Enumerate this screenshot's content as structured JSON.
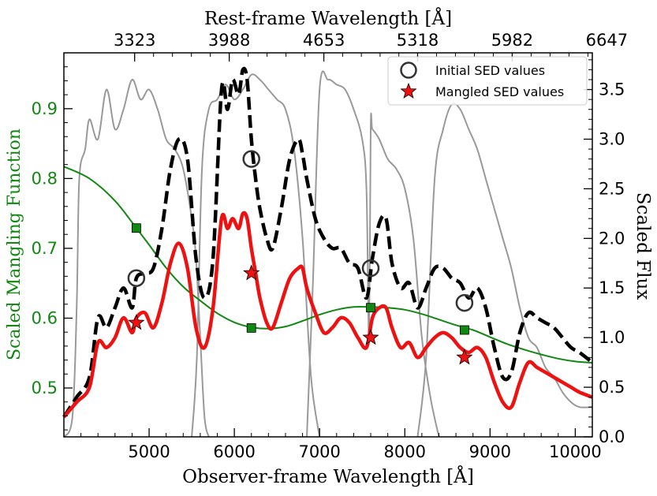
{
  "chart_data": {
    "type": "line",
    "xlabel": "Observer-frame Wavelength [Å]",
    "x2label": "Rest-frame Wavelength [Å]",
    "ylabel": "Scaled Mangling Function",
    "y2label": "Scaled Flux",
    "xlim": [
      4000,
      10200
    ],
    "ylim": [
      0.43,
      0.98
    ],
    "y2lim": [
      0.0,
      3.87
    ],
    "x_ticks": [
      "5000",
      "6000",
      "7000",
      "8000",
      "9000",
      "10000"
    ],
    "x_tick_values": [
      5000,
      6000,
      7000,
      8000,
      9000,
      10000
    ],
    "x2_ticks": [
      "3323",
      "3988",
      "4653",
      "5318",
      "5982",
      "6647"
    ],
    "x2_tick_positions": [
      4830,
      5940,
      7050,
      8150,
      9260,
      10370
    ],
    "y_ticks": [
      "0.5",
      "0.6",
      "0.7",
      "0.8",
      "0.9"
    ],
    "y_tick_values": [
      0.5,
      0.6,
      0.7,
      0.8,
      0.9
    ],
    "y2_ticks": [
      "0.0",
      "0.5",
      "1.0",
      "1.5",
      "2.0",
      "2.5",
      "3.0",
      "3.5"
    ],
    "y2_tick_values": [
      0.0,
      0.5,
      1.0,
      1.5,
      2.0,
      2.5,
      3.0,
      3.5
    ],
    "legend": {
      "position": "top-right",
      "entries": [
        {
          "label": "Initial SED values",
          "marker": "open-circle"
        },
        {
          "label": "Mangled SED values",
          "marker": "red-star"
        }
      ]
    },
    "colors": {
      "mangling": "#118811",
      "initial_sed": "#000000",
      "mangled_sed": "#ee1111",
      "filters": "#999999",
      "circle": "#333333"
    },
    "series": [
      {
        "role": "mangling-function",
        "axis": "left",
        "x": [
          4000,
          4300,
          4600,
          4850,
          5000,
          5200,
          5400,
          5600,
          5800,
          6000,
          6200,
          6400,
          6600,
          6800,
          7000,
          7200,
          7400,
          7600,
          7800,
          8000,
          8200,
          8400,
          8600,
          8800,
          9000,
          9200,
          9400,
          9600,
          9800,
          10000,
          10200
        ],
        "y": [
          0.817,
          0.8,
          0.768,
          0.729,
          0.705,
          0.672,
          0.645,
          0.625,
          0.607,
          0.594,
          0.587,
          0.585,
          0.588,
          0.596,
          0.605,
          0.612,
          0.616,
          0.616,
          0.615,
          0.612,
          0.606,
          0.598,
          0.59,
          0.583,
          0.573,
          0.563,
          0.555,
          0.548,
          0.542,
          0.538,
          0.536
        ]
      },
      {
        "role": "initial-sed",
        "axis": "right",
        "x": [
          4000,
          4150,
          4300,
          4400,
          4500,
          4600,
          4700,
          4800,
          4850,
          4950,
          5050,
          5150,
          5250,
          5350,
          5450,
          5550,
          5650,
          5750,
          5850,
          5920,
          5980,
          6050,
          6100,
          6150,
          6200,
          6250,
          6300,
          6380,
          6450,
          6550,
          6650,
          6750,
          6800,
          6850,
          6950,
          7050,
          7150,
          7250,
          7350,
          7450,
          7550,
          7620,
          7700,
          7780,
          7850,
          7950,
          8050,
          8150,
          8250,
          8350,
          8450,
          8550,
          8650,
          8750,
          8850,
          8950,
          9050,
          9150,
          9250,
          9350,
          9450,
          9550,
          9650,
          9750,
          9850,
          9950,
          10050,
          10200
        ],
        "y": [
          0.2,
          0.4,
          0.6,
          1.2,
          1.1,
          1.3,
          1.5,
          1.3,
          1.6,
          1.65,
          1.7,
          2.1,
          2.7,
          3.0,
          2.8,
          1.8,
          1.4,
          1.8,
          3.5,
          3.3,
          3.6,
          3.45,
          3.7,
          3.6,
          3.0,
          2.6,
          2.3,
          2.0,
          1.9,
          2.3,
          2.8,
          3.0,
          2.85,
          2.6,
          2.2,
          2.0,
          1.9,
          1.9,
          1.75,
          1.7,
          1.4,
          1.8,
          2.15,
          2.2,
          1.75,
          1.5,
          1.55,
          1.3,
          1.5,
          1.7,
          1.7,
          1.6,
          1.55,
          1.4,
          1.5,
          1.3,
          0.9,
          0.6,
          0.65,
          1.05,
          1.25,
          1.2,
          1.15,
          1.1,
          1.0,
          0.9,
          0.85,
          0.75
        ]
      },
      {
        "role": "mangled-sed",
        "axis": "right",
        "x": [
          4000,
          4150,
          4300,
          4400,
          4500,
          4600,
          4700,
          4800,
          4850,
          4950,
          5050,
          5150,
          5250,
          5350,
          5450,
          5550,
          5650,
          5750,
          5850,
          5920,
          5980,
          6050,
          6100,
          6150,
          6200,
          6250,
          6300,
          6380,
          6450,
          6550,
          6650,
          6750,
          6800,
          6850,
          6950,
          7050,
          7150,
          7250,
          7350,
          7450,
          7550,
          7620,
          7700,
          7780,
          7850,
          7950,
          8050,
          8150,
          8250,
          8350,
          8450,
          8550,
          8650,
          8750,
          8850,
          8950,
          9050,
          9150,
          9250,
          9350,
          9450,
          9550,
          9650,
          9750,
          9850,
          9950,
          10050,
          10200
        ],
        "y": [
          0.2,
          0.35,
          0.5,
          0.95,
          0.9,
          1.0,
          1.2,
          1.05,
          1.2,
          1.25,
          1.1,
          1.35,
          1.75,
          1.95,
          1.7,
          1.1,
          0.9,
          1.3,
          2.2,
          2.1,
          2.2,
          2.1,
          2.25,
          2.2,
          1.9,
          1.65,
          1.4,
          1.15,
          1.1,
          1.35,
          1.6,
          1.7,
          1.7,
          1.5,
          1.25,
          1.05,
          1.1,
          1.2,
          1.15,
          1.0,
          0.9,
          1.2,
          1.3,
          1.3,
          1.1,
          0.9,
          0.95,
          0.8,
          0.9,
          1.0,
          1.05,
          1.0,
          0.9,
          0.85,
          0.9,
          0.8,
          0.55,
          0.35,
          0.3,
          0.55,
          0.75,
          0.7,
          0.65,
          0.6,
          0.55,
          0.5,
          0.45,
          0.4
        ]
      }
    ],
    "mangling_points": {
      "x": [
        4850,
        6200,
        7600,
        8700
      ],
      "y": [
        0.729,
        0.586,
        0.615,
        0.583
      ]
    },
    "initial_points": {
      "x": [
        4850,
        6200,
        7600,
        8700
      ],
      "y": [
        1.6,
        2.8,
        1.7,
        1.35
      ]
    },
    "mangled_points": {
      "x": [
        4850,
        6200,
        7600,
        8700
      ],
      "y": [
        1.15,
        1.65,
        1.0,
        0.8
      ]
    },
    "filters": [
      {
        "x": [
          4000,
          4100,
          4150,
          4180,
          4250,
          4300,
          4400,
          4500,
          4600,
          4700,
          4800,
          4900,
          5000,
          5100,
          5200,
          5300,
          5400,
          5500,
          5550,
          5600,
          5650,
          5700
        ],
        "y": [
          0.0,
          0.2,
          1.3,
          2.6,
          2.9,
          3.2,
          3.0,
          3.5,
          3.1,
          3.3,
          3.6,
          3.4,
          3.5,
          3.3,
          3.0,
          2.9,
          2.7,
          2.2,
          1.8,
          1.0,
          0.2,
          0.0
        ]
      },
      {
        "x": [
          5500,
          5560,
          5620,
          5700,
          5800,
          5900,
          6000,
          6100,
          6200,
          6300,
          6400,
          6500,
          6600,
          6700,
          6800,
          6900,
          7000
        ],
        "y": [
          0.0,
          0.8,
          2.7,
          3.3,
          3.4,
          3.55,
          3.4,
          3.5,
          3.65,
          3.6,
          3.5,
          3.4,
          3.3,
          2.9,
          2.0,
          0.6,
          0.0
        ]
      },
      {
        "x": [
          6850,
          6920,
          7000,
          7100,
          7200,
          7300,
          7400,
          7500,
          7550,
          7580,
          7600,
          7620,
          7700,
          7800,
          7900,
          8000,
          8100,
          8200,
          8300,
          8400
        ],
        "y": [
          0.0,
          1.5,
          3.5,
          3.6,
          3.55,
          3.5,
          3.3,
          3.0,
          2.5,
          1.0,
          3.1,
          3.1,
          3.0,
          2.8,
          2.7,
          2.5,
          2.0,
          1.0,
          0.4,
          0.0
        ]
      },
      {
        "x": [
          8150,
          8250,
          8350,
          8450,
          8550,
          8650,
          8750,
          8850,
          8950,
          9050,
          9150,
          9250,
          9350,
          9450,
          9550,
          9650,
          9750,
          9850,
          9950,
          10050,
          10200
        ],
        "y": [
          0.0,
          0.8,
          2.6,
          3.1,
          3.35,
          3.3,
          3.1,
          2.9,
          2.6,
          2.3,
          2.0,
          1.7,
          1.3,
          1.0,
          0.9,
          0.7,
          0.6,
          0.45,
          0.35,
          0.3,
          0.3
        ]
      }
    ]
  }
}
